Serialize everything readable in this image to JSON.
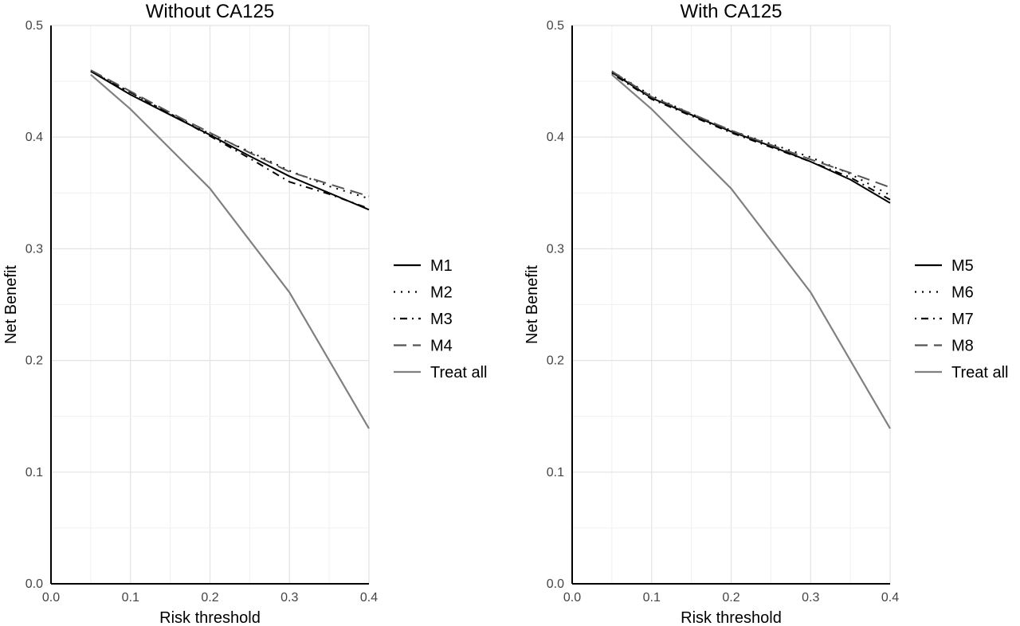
{
  "chart_data": [
    {
      "type": "line",
      "title": "Without CA125",
      "xlabel": "Risk threshold",
      "ylabel": "Net Benefit",
      "xlim": [
        0.0,
        0.4
      ],
      "ylim": [
        0.0,
        0.5
      ],
      "xticks": [
        "0.0",
        "0.1",
        "0.2",
        "0.3",
        "0.4"
      ],
      "yticks": [
        "0.0",
        "0.1",
        "0.2",
        "0.3",
        "0.4",
        "0.5"
      ],
      "grid": true,
      "legend": "right",
      "series": [
        {
          "name": "M1",
          "color": "#000000",
          "dash": "solid",
          "x": [
            0.05,
            0.1,
            0.15,
            0.2,
            0.25,
            0.3,
            0.35,
            0.4
          ],
          "y": [
            0.459,
            0.438,
            0.42,
            0.402,
            0.383,
            0.365,
            0.35,
            0.335
          ]
        },
        {
          "name": "M2",
          "color": "#000000",
          "dash": "dotted",
          "x": [
            0.05,
            0.1,
            0.15,
            0.2,
            0.25,
            0.3,
            0.35,
            0.4
          ],
          "y": [
            0.459,
            0.44,
            0.421,
            0.403,
            0.387,
            0.37,
            0.356,
            0.345
          ]
        },
        {
          "name": "M3",
          "color": "#000000",
          "dash": "dotdash",
          "x": [
            0.05,
            0.1,
            0.15,
            0.2,
            0.25,
            0.3,
            0.35,
            0.4
          ],
          "y": [
            0.459,
            0.44,
            0.421,
            0.401,
            0.381,
            0.36,
            0.349,
            0.336
          ]
        },
        {
          "name": "M4",
          "color": "#555555",
          "dash": "longdash",
          "x": [
            0.05,
            0.1,
            0.15,
            0.2,
            0.25,
            0.3,
            0.35,
            0.4
          ],
          "y": [
            0.46,
            0.441,
            0.422,
            0.404,
            0.386,
            0.369,
            0.358,
            0.347
          ]
        },
        {
          "name": "Treat all",
          "color": "#808080",
          "dash": "solid",
          "x": [
            0.05,
            0.1,
            0.2,
            0.3,
            0.4
          ],
          "y": [
            0.456,
            0.425,
            0.354,
            0.261,
            0.139
          ]
        }
      ]
    },
    {
      "type": "line",
      "title": "With CA125",
      "xlabel": "Risk threshold",
      "ylabel": "Net Benefit",
      "xlim": [
        0.0,
        0.4
      ],
      "ylim": [
        0.0,
        0.5
      ],
      "xticks": [
        "0.0",
        "0.1",
        "0.2",
        "0.3",
        "0.4"
      ],
      "yticks": [
        "0.0",
        "0.1",
        "0.2",
        "0.3",
        "0.4",
        "0.5"
      ],
      "grid": true,
      "legend": "right",
      "series": [
        {
          "name": "M5",
          "color": "#000000",
          "dash": "solid",
          "x": [
            0.05,
            0.1,
            0.15,
            0.2,
            0.25,
            0.3,
            0.35,
            0.4
          ],
          "y": [
            0.458,
            0.435,
            0.42,
            0.405,
            0.392,
            0.378,
            0.362,
            0.341
          ]
        },
        {
          "name": "M6",
          "color": "#000000",
          "dash": "dotted",
          "x": [
            0.05,
            0.1,
            0.15,
            0.2,
            0.25,
            0.3,
            0.35,
            0.4
          ],
          "y": [
            0.459,
            0.437,
            0.421,
            0.406,
            0.394,
            0.382,
            0.367,
            0.348
          ]
        },
        {
          "name": "M7",
          "color": "#000000",
          "dash": "dotdash",
          "x": [
            0.05,
            0.1,
            0.15,
            0.2,
            0.25,
            0.3,
            0.35,
            0.4
          ],
          "y": [
            0.457,
            0.434,
            0.419,
            0.404,
            0.391,
            0.378,
            0.364,
            0.344
          ]
        },
        {
          "name": "M8",
          "color": "#555555",
          "dash": "longdash",
          "x": [
            0.05,
            0.1,
            0.15,
            0.2,
            0.25,
            0.3,
            0.35,
            0.4
          ],
          "y": [
            0.459,
            0.436,
            0.421,
            0.406,
            0.393,
            0.38,
            0.368,
            0.355
          ]
        },
        {
          "name": "Treat all",
          "color": "#808080",
          "dash": "solid",
          "x": [
            0.05,
            0.1,
            0.2,
            0.3,
            0.4
          ],
          "y": [
            0.456,
            0.425,
            0.354,
            0.261,
            0.139
          ]
        }
      ]
    }
  ]
}
